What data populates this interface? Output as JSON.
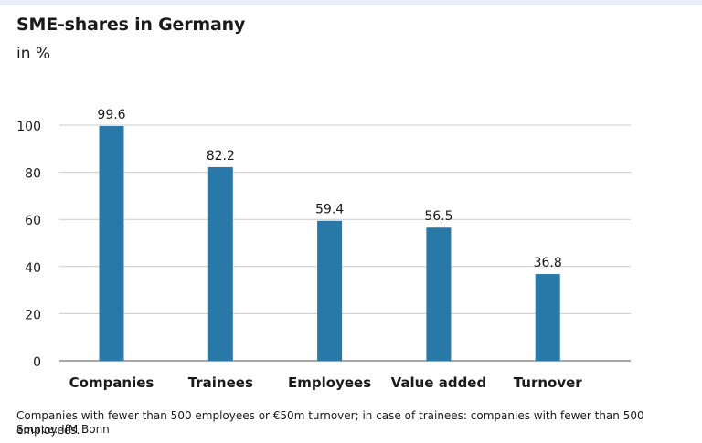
{
  "header": {
    "title": "SME-shares in Germany",
    "subtitle": "in %"
  },
  "chart_data": {
    "type": "bar",
    "title": "SME-shares in Germany",
    "subtitle": "in %",
    "categories": [
      "Companies",
      "Trainees",
      "Employees",
      "Value added",
      "Turnover"
    ],
    "values": [
      99.6,
      82.2,
      59.4,
      56.5,
      36.8
    ],
    "value_labels": [
      "99.6",
      "82.2",
      "59.4",
      "56.5",
      "36.8"
    ],
    "y_ticks": [
      0,
      20,
      40,
      60,
      80,
      100
    ],
    "ylim": [
      0,
      100
    ],
    "xlabel": "",
    "ylabel": "",
    "grid": true,
    "bar_color": "#2878a8",
    "grid_color": "#cccccc"
  },
  "footer": {
    "note": "Companies with fewer than 500 employees or €50m turnover; in case of trainees: companies with fewer than 500 employees.",
    "source": "Source: IfM Bonn"
  }
}
